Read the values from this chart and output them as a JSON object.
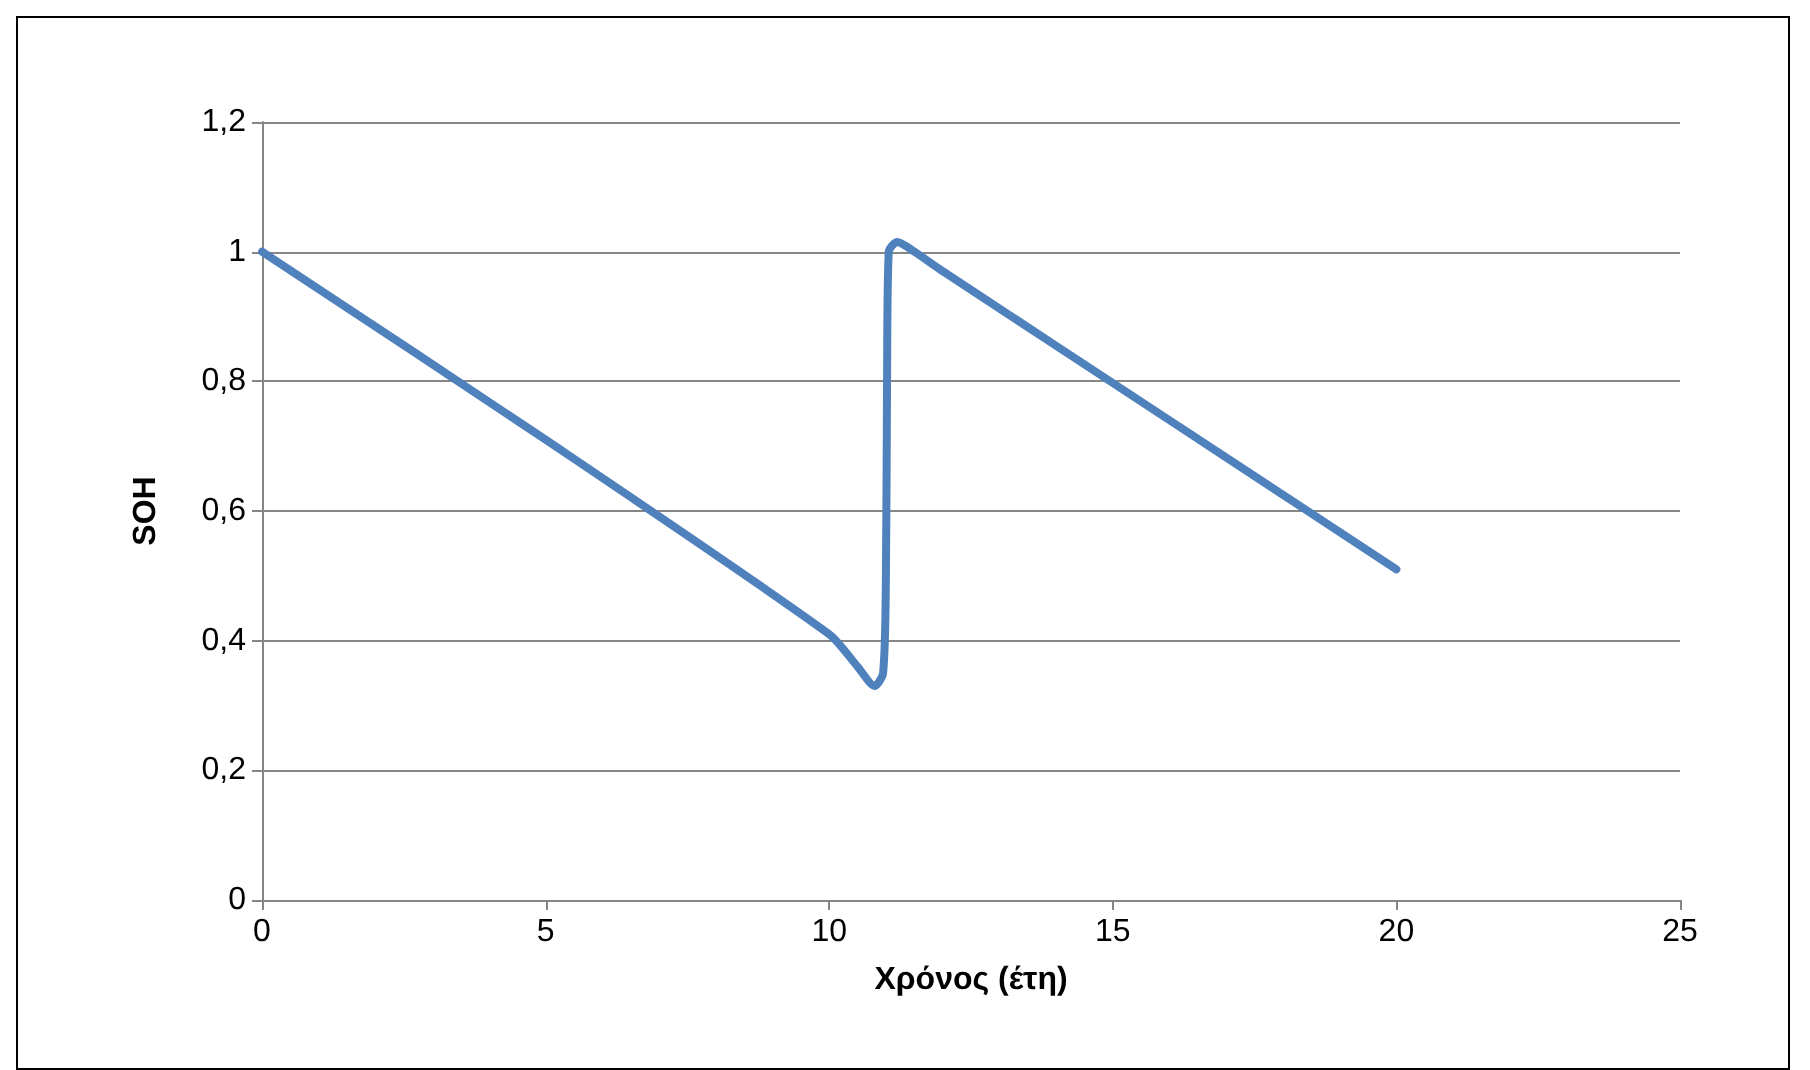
{
  "chart_data": {
    "type": "line",
    "xlabel": "Χρόνος (έτη)",
    "ylabel": "SOH",
    "series": [
      {
        "color": "#4f81bd",
        "x": [
          0,
          5,
          10,
          10.5,
          10.8,
          10.95,
          11,
          11.02,
          11.05,
          11.2,
          11.5,
          12,
          16,
          20
        ],
        "values": [
          1,
          0.71,
          0.41,
          0.36,
          0.33,
          0.35,
          0.5,
          0.8,
          1,
          1.015,
          1,
          0.97,
          0.74,
          0.51
        ]
      }
    ],
    "xlim": [
      0,
      25
    ],
    "xticks": [
      0,
      5,
      10,
      15,
      20,
      25
    ],
    "ylim": [
      0,
      1.2
    ],
    "yticks": [
      {
        "value": 0,
        "label": "0"
      },
      {
        "value": 0.2,
        "label": "0,2"
      },
      {
        "value": 0.4,
        "label": "0,4"
      },
      {
        "value": 0.6,
        "label": "0,6"
      },
      {
        "value": 0.8,
        "label": "0,8"
      },
      {
        "value": 1,
        "label": "1"
      },
      {
        "value": 1.2,
        "label": "1,2"
      }
    ],
    "grid": "y",
    "line_style": "solid"
  }
}
